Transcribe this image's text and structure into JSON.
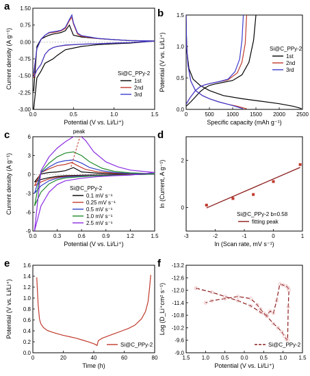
{
  "chart_data": [
    {
      "type": "line",
      "panel": "a",
      "xlabel": "Potential (V vs. Li/Li⁺)",
      "ylabel": "Current density (A g⁻¹)",
      "xlim": [
        0,
        1.5
      ],
      "ylim": [
        -3.0,
        1.5
      ],
      "xticks": [
        "0.0",
        "0.5",
        "1.0",
        "1.5"
      ],
      "yticks": [
        "-3.00",
        "-2.25",
        "-1.50",
        "-0.75",
        "0.00",
        "0.75",
        "1.50"
      ],
      "legend_title": "Si@C_PPy-2",
      "legend_position": "bottom-right",
      "series": [
        {
          "name": "1st",
          "color": "#000000",
          "x": [
            0.01,
            0.05,
            0.1,
            0.15,
            0.2,
            0.25,
            0.3,
            0.35,
            0.4,
            0.45,
            0.5,
            0.6,
            0.8,
            1.0,
            1.2,
            1.5,
            1.2,
            1.0,
            0.8,
            0.6,
            0.4,
            0.3,
            0.25,
            0.2,
            0.15,
            0.1,
            0.05,
            0.01
          ],
          "y": [
            -2.2,
            -0.2,
            0.12,
            0.22,
            0.3,
            0.35,
            0.38,
            0.42,
            0.5,
            0.75,
            0.3,
            0.22,
            0.15,
            0.1,
            0.06,
            0.04,
            -0.05,
            -0.08,
            -0.12,
            -0.2,
            -0.35,
            -0.6,
            -0.75,
            -0.85,
            -0.95,
            -1.3,
            -1.6,
            -3.0
          ]
        },
        {
          "name": "2nd",
          "color": "#c0392b",
          "x": [
            0.01,
            0.05,
            0.1,
            0.15,
            0.2,
            0.25,
            0.3,
            0.35,
            0.4,
            0.45,
            0.48,
            0.5,
            0.55,
            0.6,
            0.8,
            1.0,
            1.2,
            1.5,
            1.2,
            1.0,
            0.8,
            0.6,
            0.4,
            0.3,
            0.25,
            0.2,
            0.15,
            0.1,
            0.05,
            0.01
          ],
          "y": [
            -1.5,
            -0.3,
            0.1,
            0.3,
            0.4,
            0.42,
            0.45,
            0.5,
            0.6,
            0.95,
            1.1,
            0.8,
            0.35,
            0.25,
            0.15,
            0.1,
            0.06,
            0.04,
            -0.03,
            -0.05,
            -0.08,
            -0.1,
            -0.15,
            -0.2,
            -0.25,
            -0.35,
            -0.55,
            -1.0,
            -1.25,
            -1.6
          ]
        },
        {
          "name": "3rd",
          "color": "#3b3bd1",
          "x": [
            0.01,
            0.05,
            0.1,
            0.15,
            0.2,
            0.25,
            0.3,
            0.35,
            0.4,
            0.45,
            0.48,
            0.5,
            0.55,
            0.6,
            0.8,
            1.0,
            1.2,
            1.5,
            1.2,
            1.0,
            0.8,
            0.6,
            0.4,
            0.3,
            0.25,
            0.2,
            0.15,
            0.1,
            0.05,
            0.01
          ],
          "y": [
            -1.4,
            -0.3,
            0.12,
            0.3,
            0.42,
            0.45,
            0.48,
            0.52,
            0.65,
            1.0,
            1.2,
            0.85,
            0.4,
            0.28,
            0.16,
            0.1,
            0.06,
            0.04,
            -0.03,
            -0.05,
            -0.08,
            -0.1,
            -0.14,
            -0.2,
            -0.25,
            -0.35,
            -0.55,
            -1.0,
            -1.25,
            -1.55
          ]
        }
      ]
    },
    {
      "type": "line",
      "panel": "b",
      "xlabel": "Specific capacity (mAh g⁻¹)",
      "ylabel": "Potential (V vs. Li/Li⁺)",
      "xlim": [
        0,
        2500
      ],
      "ylim": [
        0,
        1.5
      ],
      "xticks": [
        "0",
        "500",
        "1000",
        "1500",
        "2000",
        "2500"
      ],
      "yticks": [
        "0.0",
        "0.5",
        "1.0",
        "1.5"
      ],
      "legend_title": "Si@C_PPy-2",
      "legend_position": "right",
      "series": [
        {
          "name": "1st",
          "color": "#000000",
          "x": [
            0,
            5,
            20,
            60,
            150,
            300,
            500,
            800,
            1200,
            1600,
            2000,
            2300,
            2450,
            2480,
            null,
            0,
            100,
            200,
            300,
            400,
            500,
            600,
            800,
            1000,
            1200,
            1350,
            1450,
            1500
          ],
          "y": [
            1.5,
            1.2,
            0.9,
            0.65,
            0.48,
            0.38,
            0.3,
            0.22,
            0.17,
            0.13,
            0.09,
            0.05,
            0.02,
            0.01,
            null,
            0.05,
            0.12,
            0.2,
            0.28,
            0.34,
            0.38,
            0.4,
            0.43,
            0.46,
            0.55,
            0.75,
            1.1,
            1.5
          ]
        },
        {
          "name": "2nd",
          "color": "#c0392b",
          "x": [
            0,
            10,
            40,
            100,
            200,
            350,
            500,
            700,
            900,
            1100,
            1250,
            1300,
            null,
            0,
            80,
            200,
            300,
            400,
            500,
            700,
            900,
            1100,
            1200,
            1270,
            1300
          ],
          "y": [
            1.5,
            1.0,
            0.7,
            0.45,
            0.3,
            0.22,
            0.17,
            0.12,
            0.08,
            0.05,
            0.02,
            0.01,
            null,
            0.08,
            0.18,
            0.3,
            0.36,
            0.39,
            0.41,
            0.44,
            0.47,
            0.58,
            0.75,
            1.05,
            1.5
          ]
        },
        {
          "name": "3rd",
          "color": "#3b3bd1",
          "x": [
            0,
            10,
            40,
            100,
            200,
            350,
            500,
            700,
            900,
            1050,
            1180,
            1220,
            null,
            0,
            80,
            200,
            300,
            400,
            500,
            700,
            900,
            1050,
            1150,
            1200,
            1230
          ],
          "y": [
            1.5,
            1.0,
            0.7,
            0.45,
            0.3,
            0.22,
            0.17,
            0.12,
            0.08,
            0.05,
            0.02,
            0.01,
            null,
            0.08,
            0.18,
            0.3,
            0.36,
            0.39,
            0.41,
            0.44,
            0.48,
            0.6,
            0.8,
            1.1,
            1.5
          ]
        }
      ]
    },
    {
      "type": "line",
      "panel": "c",
      "xlabel": "Potential (V vs. Li/Li⁺)",
      "ylabel": "Current density (A g⁻¹)",
      "xlim": [
        0,
        1.5
      ],
      "ylim": [
        -9,
        6
      ],
      "xticks": [
        "0.0",
        "0.3",
        "0.6",
        "0.9",
        "1.2",
        "1.5"
      ],
      "yticks": [
        "-9",
        "-6",
        "-3",
        "0",
        "3",
        "6"
      ],
      "annotation": "peak",
      "legend_title": "Si@C_PPy-2",
      "legend_position": "right",
      "series": [
        {
          "name": "0.1 mV s⁻¹",
          "color": "#000000",
          "x": [
            0.02,
            0.1,
            0.2,
            0.3,
            0.4,
            0.5,
            0.6,
            0.8,
            1.0,
            1.2,
            1.5,
            1.2,
            1.0,
            0.8,
            0.6,
            0.4,
            0.3,
            0.2,
            0.1,
            0.02
          ],
          "y": [
            -1.2,
            0.1,
            0.3,
            0.4,
            0.6,
            1.1,
            0.4,
            0.2,
            0.1,
            0.06,
            0.04,
            -0.02,
            -0.05,
            -0.08,
            -0.12,
            -0.2,
            -0.3,
            -0.5,
            -0.8,
            -1.2
          ]
        },
        {
          "name": "0.25 mV s⁻¹",
          "color": "#c0392b",
          "x": [
            0.02,
            0.1,
            0.2,
            0.3,
            0.4,
            0.48,
            0.55,
            0.65,
            0.8,
            1.0,
            1.2,
            1.5,
            1.2,
            1.0,
            0.8,
            0.6,
            0.4,
            0.3,
            0.2,
            0.1,
            0.02
          ],
          "y": [
            -1.8,
            0.3,
            0.9,
            1.4,
            1.6,
            1.9,
            1.4,
            0.8,
            0.4,
            0.2,
            0.1,
            0.05,
            -0.03,
            -0.08,
            -0.12,
            -0.2,
            -0.3,
            -0.45,
            -0.7,
            -1.2,
            -1.8
          ]
        },
        {
          "name": "0.5 mV s⁻¹",
          "color": "#2e3ec7",
          "x": [
            0.02,
            0.1,
            0.2,
            0.3,
            0.4,
            0.5,
            0.6,
            0.7,
            0.85,
            1.0,
            1.2,
            1.5,
            1.2,
            1.0,
            0.8,
            0.6,
            0.4,
            0.3,
            0.2,
            0.1,
            0.02
          ],
          "y": [
            -3.0,
            0.3,
            1.2,
            1.9,
            2.2,
            2.3,
            1.8,
            1.1,
            0.6,
            0.3,
            0.15,
            0.08,
            -0.05,
            -0.1,
            -0.15,
            -0.25,
            -0.4,
            -0.6,
            -1.0,
            -1.8,
            -3.0
          ]
        },
        {
          "name": "1.0 mV s⁻¹",
          "color": "#1f8a2a",
          "x": [
            0.02,
            0.1,
            0.2,
            0.3,
            0.4,
            0.5,
            0.6,
            0.7,
            0.85,
            1.0,
            1.2,
            1.5,
            1.2,
            1.0,
            0.8,
            0.6,
            0.4,
            0.3,
            0.2,
            0.1,
            0.02
          ],
          "y": [
            -5.0,
            0.4,
            1.8,
            2.8,
            3.4,
            3.6,
            3.0,
            2.0,
            1.0,
            0.5,
            0.25,
            0.12,
            -0.05,
            -0.12,
            -0.2,
            -0.35,
            -0.55,
            -0.85,
            -1.5,
            -2.8,
            -5.0
          ]
        },
        {
          "name": "2.5 mV s⁻¹",
          "color": "#8a2be2",
          "x": [
            0.02,
            0.1,
            0.2,
            0.3,
            0.4,
            0.5,
            0.58,
            0.65,
            0.75,
            0.9,
            1.05,
            1.2,
            1.5,
            1.2,
            1.0,
            0.8,
            0.6,
            0.4,
            0.3,
            0.2,
            0.1,
            0.02
          ],
          "y": [
            -9.0,
            0.6,
            2.8,
            4.2,
            5.2,
            6.0,
            6.2,
            5.4,
            3.6,
            2.0,
            1.2,
            0.7,
            0.3,
            -0.1,
            -0.2,
            -0.35,
            -0.6,
            -1.0,
            -1.6,
            -2.8,
            -5.0,
            -9.0
          ]
        }
      ]
    },
    {
      "type": "scatter",
      "panel": "d",
      "xlabel": "ln (Scan rate, mV s⁻¹)",
      "ylabel": "ln (Current, A g⁻¹)",
      "xlim": [
        -3,
        1
      ],
      "ylim": [
        -1,
        3
      ],
      "xticks": [
        "-3",
        "-2",
        "-1",
        "0",
        "1"
      ],
      "yticks": [
        "0",
        "2"
      ],
      "annotation": "Si@C_PPy-2 b=0.58",
      "legend_position": "bottom-right",
      "points": {
        "x": [
          -2.3,
          -1.39,
          -0.69,
          0,
          0.92
        ],
        "y": [
          0.1,
          0.38,
          0.55,
          1.1,
          1.82
        ],
        "color": "#c0392b"
      },
      "fit": {
        "name": "fitting peak",
        "x": [
          -2.3,
          0.92
        ],
        "y": [
          -0.02,
          1.7
        ],
        "color": "#8b1a1a"
      }
    },
    {
      "type": "line",
      "panel": "e",
      "xlabel": "Time (h)",
      "ylabel": "Potential (V vs. Li/Li⁺)",
      "xlim": [
        -3,
        90
      ],
      "ylim": [
        -0.1,
        1.7
      ],
      "xticks": [
        "0",
        "20",
        "40",
        "60",
        "80"
      ],
      "yticks": [
        "0.0",
        "0.2",
        "0.4",
        "0.6",
        "0.8",
        "1.0",
        "1.2",
        "1.4",
        "1.6"
      ],
      "legend_position": "bottom-right",
      "series": [
        {
          "name": "Si@C_PPy-2",
          "color": "#c0392b",
          "x": [
            0,
            1,
            2,
            3,
            5,
            8,
            12,
            16,
            20,
            25,
            30,
            35,
            40,
            44,
            46,
            47,
            50,
            55,
            60,
            65,
            70,
            75,
            80,
            83,
            85,
            86,
            87
          ],
          "y": [
            1.45,
            0.9,
            0.6,
            0.5,
            0.42,
            0.36,
            0.32,
            0.29,
            0.26,
            0.23,
            0.2,
            0.16,
            0.12,
            0.08,
            0.05,
            0.15,
            0.2,
            0.25,
            0.3,
            0.35,
            0.4,
            0.47,
            0.6,
            0.75,
            0.95,
            1.2,
            1.5
          ]
        }
      ]
    },
    {
      "type": "line",
      "panel": "f",
      "xlabel": "Potential (V vs. Li/Li⁺)",
      "ylabel": "Log (D_Li⁺cm² s⁻¹)",
      "xlim": [
        1.6,
        -0.2
      ],
      "ylim": [
        -13.2,
        -9.0
      ],
      "xticks": [
        "1.5",
        "1.0",
        "0.5",
        "0.0",
        "0.5",
        "1.0",
        "1.5"
      ],
      "yticks": [
        "-9.0",
        "-9.6",
        "-10.2",
        "-10.8",
        "-11.4",
        "-12.0",
        "-12.6",
        "-13.2"
      ],
      "legend_position": "bottom-right",
      "series": [
        {
          "name": "Si@C_PPy-2",
          "color": "#8b1a1a",
          "x": [
            1.45,
            1.2,
            1.0,
            0.8,
            0.6,
            0.45,
            0.35,
            0.25,
            0.18,
            0.12,
            0.08,
            0.05,
            0.03,
            0.02,
            0.01,
            0.02,
            0.05,
            0.1,
            0.15,
            0.2,
            0.25,
            0.3,
            0.35,
            0.4,
            0.45,
            0.5,
            0.6,
            0.8,
            1.0,
            1.2,
            1.3
          ],
          "y": [
            -10.1,
            -10.3,
            -10.5,
            -10.7,
            -10.95,
            -11.25,
            -11.45,
            -11.8,
            -12.0,
            -12.2,
            -12.4,
            -12.55,
            -12.6,
            -11.0,
            -10.2,
            -10.1,
            -10.0,
            -9.95,
            -9.9,
            -10.7,
            -11.3,
            -11.2,
            -11.4,
            -11.3,
            -11.1,
            -10.9,
            -10.6,
            -10.5,
            -10.6,
            -10.7,
            -10.8
          ]
        }
      ]
    }
  ]
}
